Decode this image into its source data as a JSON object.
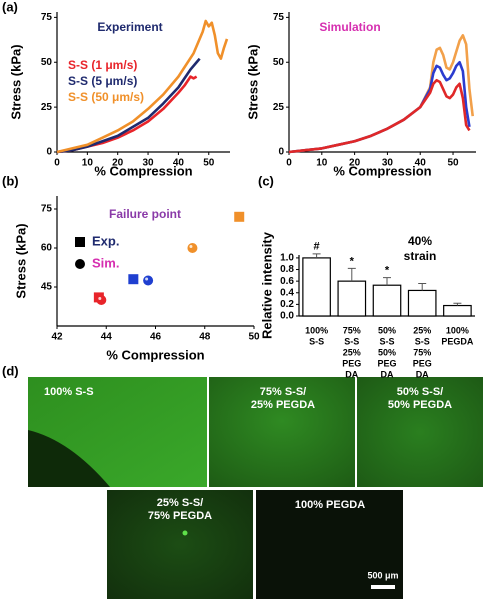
{
  "panels": [
    "(a)",
    "(b)",
    "(c)",
    "(d)"
  ],
  "chart_data": [
    {
      "type": "line",
      "title": "Experiment",
      "title_color": "#1f2a6e",
      "xlabel": "% Compression",
      "ylabel": "Stress (kPa)",
      "xlim": [
        0,
        57
      ],
      "xticks": [
        0,
        10,
        20,
        30,
        40,
        50
      ],
      "ylim": [
        0,
        78
      ],
      "yticks": [
        0,
        25,
        50,
        75
      ],
      "legend": "upper-left",
      "series": [
        {
          "name": "S-S (1 μm/s)",
          "color": "#e8242a",
          "x": [
            0,
            5,
            10,
            15,
            20,
            25,
            30,
            35,
            40,
            42,
            44,
            45,
            46
          ],
          "values": [
            0,
            1,
            3,
            5,
            8,
            12,
            17,
            24,
            33,
            37,
            42,
            41,
            42
          ]
        },
        {
          "name": "S-S (5 μm/s)",
          "color": "#1f2a6e",
          "x": [
            0,
            5,
            10,
            15,
            20,
            25,
            30,
            35,
            40,
            42,
            44,
            46,
            47
          ],
          "values": [
            0,
            1,
            3,
            6,
            9,
            14,
            19,
            27,
            36,
            41,
            46,
            50,
            52
          ]
        },
        {
          "name": "S-S (50 μm/s)",
          "color": "#f0902a",
          "x": [
            0,
            5,
            10,
            15,
            20,
            25,
            30,
            35,
            40,
            45,
            48,
            49,
            50,
            51,
            52,
            53,
            54,
            55,
            56
          ],
          "values": [
            0,
            2,
            4,
            8,
            12,
            17,
            24,
            32,
            42,
            55,
            67,
            73,
            70,
            72,
            65,
            55,
            52,
            58,
            63
          ]
        }
      ]
    },
    {
      "type": "line",
      "title": "Simulation",
      "title_color": "#d62fb0",
      "xlabel": "% Compression",
      "ylabel": "Stress (kPa)",
      "xlim": [
        0,
        57
      ],
      "xticks": [
        0,
        10,
        20,
        30,
        40,
        50
      ],
      "ylim": [
        0,
        78
      ],
      "yticks": [
        0,
        25,
        50,
        75
      ],
      "series": [
        {
          "color": "#f2a04a",
          "x": [
            0,
            5,
            10,
            15,
            20,
            25,
            30,
            35,
            40,
            43,
            44,
            45,
            46,
            47,
            48,
            49,
            50,
            51,
            52,
            53,
            54,
            55,
            56
          ],
          "values": [
            0,
            1,
            2,
            4,
            6,
            9,
            13,
            18,
            25,
            36,
            50,
            57,
            58,
            54,
            47,
            46,
            50,
            56,
            62,
            65,
            60,
            35,
            20
          ]
        },
        {
          "color": "#2b3ccf",
          "x": [
            0,
            5,
            10,
            15,
            20,
            25,
            30,
            35,
            40,
            43,
            44,
            45,
            46,
            47,
            48,
            49,
            50,
            51,
            52,
            53,
            54,
            55
          ],
          "values": [
            0,
            1,
            2,
            4,
            6,
            9,
            13,
            18,
            25,
            35,
            44,
            48,
            47,
            43,
            40,
            41,
            44,
            48,
            50,
            45,
            25,
            14
          ]
        },
        {
          "color": "#e02828",
          "x": [
            0,
            5,
            10,
            15,
            20,
            25,
            30,
            35,
            40,
            43,
            44,
            45,
            46,
            47,
            48,
            49,
            50,
            51,
            52,
            53,
            54,
            55
          ],
          "values": [
            0,
            1,
            2,
            4,
            6,
            9,
            13,
            18,
            25,
            33,
            38,
            40,
            39,
            35,
            31,
            30,
            32,
            36,
            38,
            30,
            15,
            12
          ]
        }
      ]
    },
    {
      "type": "scatter",
      "title": "Failure point",
      "title_color": "#8a3aa8",
      "xlabel": "% Compression",
      "ylabel": "Stress (kPa)",
      "xlim": [
        42,
        50
      ],
      "xticks": [
        42,
        44,
        46,
        48,
        50
      ],
      "ylim": [
        30,
        80
      ],
      "yticks": [
        45,
        60,
        75
      ],
      "legend": "upper-left",
      "series": [
        {
          "name": "Exp.",
          "marker": "square",
          "color": "#000000",
          "text_color": "#1f2a6e",
          "colors": [
            "#e8242a",
            "#1f3fd0",
            "#f0902a"
          ],
          "x": [
            43.7,
            45.1,
            49.4
          ],
          "values": [
            41,
            48,
            72
          ]
        },
        {
          "name": "Sim.",
          "marker": "circle",
          "color": "#000000",
          "text_color": "#d62fb0",
          "colors": [
            "#e8242a",
            "#1f3fd0",
            "#f0902a"
          ],
          "x": [
            43.8,
            45.7,
            47.5
          ],
          "values": [
            40,
            47.5,
            60
          ]
        }
      ]
    },
    {
      "type": "bar",
      "ylabel": "Relative intensity",
      "color": "#ffffff",
      "edge": "#000000",
      "annotation": [
        "40%",
        "strain"
      ],
      "categories": [
        [
          "100%",
          "S-S"
        ],
        [
          "75%",
          "S-S",
          "25%",
          "PEG",
          "DA"
        ],
        [
          "50%",
          "S-S",
          "50%",
          "PEG",
          "DA"
        ],
        [
          "25%",
          "S-S",
          "75%",
          "PEG",
          "DA"
        ],
        [
          "100%",
          "PEGDA"
        ]
      ],
      "values": [
        1.0,
        0.6,
        0.53,
        0.44,
        0.18
      ],
      "errors": [
        0.07,
        0.22,
        0.13,
        0.12,
        0.04
      ],
      "bar_marks": [
        "#",
        "*",
        "*",
        null,
        null
      ],
      "ylim": [
        0,
        1.05
      ],
      "yticks": [
        {
          "value": 0,
          "label": "0.0"
        },
        {
          "value": 0.2,
          "label": "0.2"
        },
        {
          "value": 0.4,
          "label": "0.4"
        },
        {
          "value": 0.6,
          "label": "0.6"
        },
        {
          "value": 0.8,
          "label": "0.8"
        },
        {
          "value": 1,
          "label": "1.0"
        }
      ]
    }
  ],
  "images": [
    {
      "label": [
        "100% S-S"
      ]
    },
    {
      "label": [
        "75% S-S/",
        "25% PEGDA"
      ]
    },
    {
      "label": [
        "50% S-S/",
        "50% PEGDA"
      ]
    },
    {
      "label": [
        "25% S-S/",
        "75% PEGDA"
      ]
    },
    {
      "label": [
        "100% PEGDA"
      ]
    }
  ],
  "scale_bar": "500 μm"
}
